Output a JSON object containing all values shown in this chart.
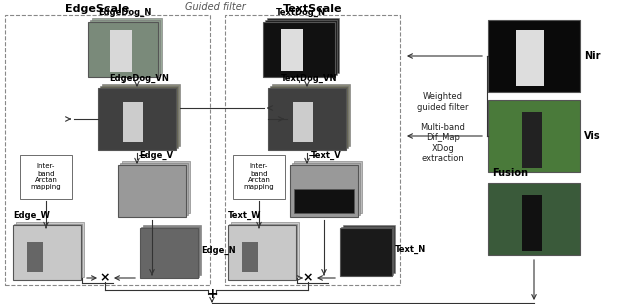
{
  "title_edgescale": "EdgeScale",
  "title_textscale": "TextScale",
  "title_guided": "Guided filter",
  "bg_color": "#ffffff",
  "dashed_box_color": "#888888",
  "arrow_color": "#333333",
  "text_color": "#000000",
  "labels": {
    "edgedog_n": "EdgeDog_N",
    "edgedog_vn": "EdgeDog_VN",
    "edge_v": "Edge_V",
    "edge_w": "Edge_W",
    "edge_n": "Edge_N",
    "textdog_n": "TextDog_N",
    "textdog_vn": "TextDog_VN",
    "text_v": "Text_V",
    "text_w": "Text_W",
    "text_n": "Text_N",
    "interband": "Inter-\nband\nArctan\nmapping",
    "interband2": "Inter-\nband\nArctan\nmapping",
    "weighted_guided": "Weighted\nguided filter",
    "multiband": "Multi-band\nDif_Map\nXDog\nextraction",
    "nir": "Nir",
    "vis": "Vis",
    "fusion": "Fusion"
  }
}
